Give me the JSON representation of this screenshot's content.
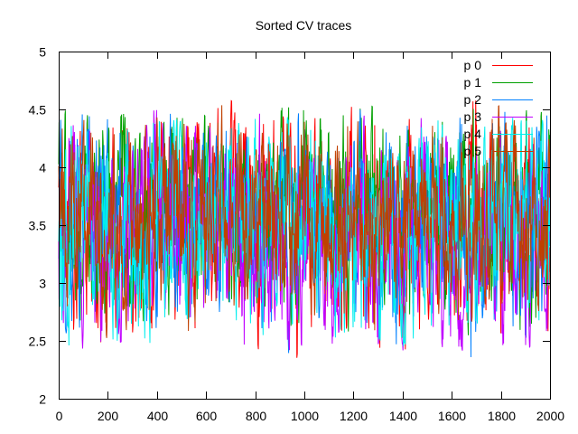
{
  "chart_data": {
    "type": "line",
    "title": "Sorted CV traces",
    "xlabel": "",
    "ylabel": "",
    "xlim": [
      0,
      2000
    ],
    "ylim": [
      2,
      5
    ],
    "x_ticks": [
      0,
      200,
      400,
      600,
      800,
      1000,
      1200,
      1400,
      1600,
      1800,
      2000
    ],
    "x_tick_labels": [
      "0",
      "200",
      "400",
      "600",
      "800",
      "1000",
      "1200",
      "1400",
      "1600",
      "1800",
      "2000"
    ],
    "y_ticks": [
      2,
      2.5,
      3,
      3.5,
      4,
      4.5,
      5
    ],
    "y_tick_labels": [
      "2",
      "2.5",
      "3",
      "3.5",
      "4",
      "4.5",
      "5"
    ],
    "grid": false,
    "legend_position": "top-right",
    "series": [
      {
        "name": "p 0",
        "color": "#ff0000",
        "x_range": [
          0,
          2000
        ],
        "baseline": 3.5,
        "amplitude": 0.55,
        "min": 2.33,
        "max": 4.58
      },
      {
        "name": "p 1",
        "color": "#00a000",
        "x_range": [
          0,
          2000
        ],
        "baseline": 3.55,
        "amplitude": 0.55,
        "min": 2.4,
        "max": 4.53
      },
      {
        "name": "p 2",
        "color": "#0080ff",
        "x_range": [
          0,
          2000
        ],
        "baseline": 3.5,
        "amplitude": 0.55,
        "min": 2.28,
        "max": 4.5
      },
      {
        "name": "p 3",
        "color": "#c000ff",
        "x_range": [
          0,
          2000
        ],
        "baseline": 3.45,
        "amplitude": 0.55,
        "min": 2.4,
        "max": 4.5
      },
      {
        "name": "p 4",
        "color": "#00eeee",
        "x_range": [
          0,
          2000
        ],
        "baseline": 3.5,
        "amplitude": 0.55,
        "min": 2.45,
        "max": 4.45
      },
      {
        "name": "p 5",
        "color": "#c04000",
        "x_range": [
          0,
          2000
        ],
        "baseline": 3.55,
        "amplitude": 0.5,
        "min": 2.5,
        "max": 4.55
      }
    ]
  }
}
